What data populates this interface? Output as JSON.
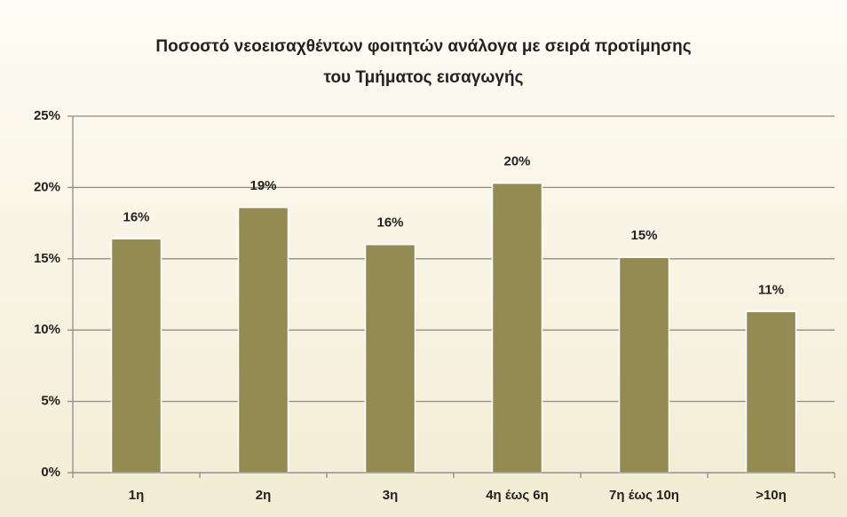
{
  "chart_data": {
    "type": "bar",
    "title": [
      "Ποσοστό νεοεισαχθέντων φοιτητών ανάλογα με σειρά προτίμησης",
      "του Τμήματος εισαγωγής"
    ],
    "categories": [
      "1η",
      "2η",
      "3η",
      "4η έως 6η",
      "7η έως 10η",
      ">10η"
    ],
    "values": [
      16.4,
      18.6,
      16.0,
      20.3,
      15.1,
      11.3
    ],
    "value_labels": [
      "16%",
      "19%",
      "16%",
      "20%",
      "15%",
      "11%"
    ],
    "color": "#948a54",
    "ylim": [
      0,
      25
    ],
    "yticks": [
      {
        "value": 0,
        "label": "0%"
      },
      {
        "value": 5,
        "label": "5%"
      },
      {
        "value": 10,
        "label": "10%"
      },
      {
        "value": 15,
        "label": "15%"
      },
      {
        "value": 20,
        "label": "20%"
      },
      {
        "value": 25,
        "label": "25%"
      }
    ],
    "grid": true
  }
}
